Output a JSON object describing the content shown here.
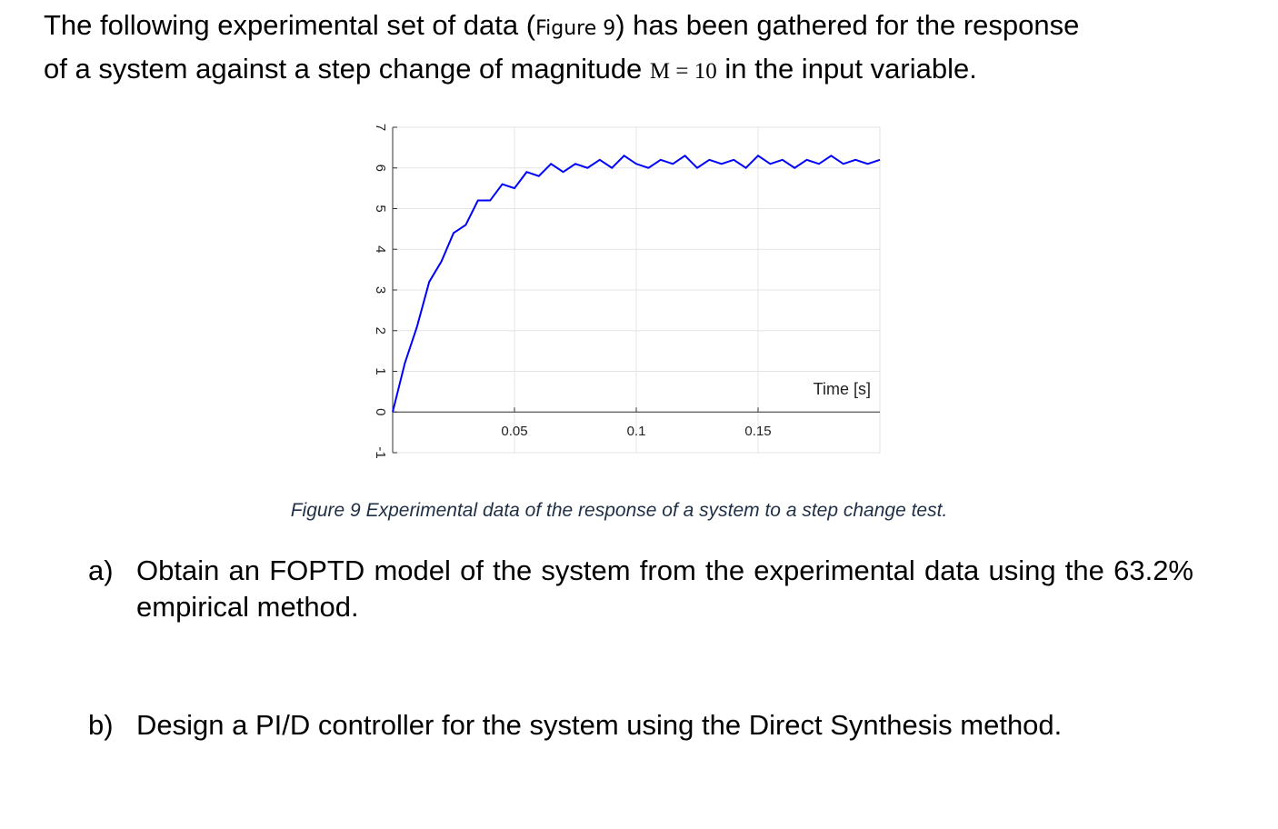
{
  "intro": [
    "The following experimental set of data (",
    "Figure 9",
    ") has been gathered for the response",
    "of a system against a step change of magnitude ",
    "M = 10",
    " in the input variable."
  ],
  "chart_data": {
    "type": "line",
    "xlabel": "Time [s]",
    "x": [
      0,
      0.005,
      0.01,
      0.015,
      0.02,
      0.025,
      0.03,
      0.035,
      0.04,
      0.045,
      0.05,
      0.055,
      0.06,
      0.065,
      0.07,
      0.075,
      0.08,
      0.085,
      0.09,
      0.095,
      0.1,
      0.105,
      0.11,
      0.115,
      0.12,
      0.125,
      0.13,
      0.135,
      0.14,
      0.145,
      0.15,
      0.155,
      0.16,
      0.165,
      0.17,
      0.175,
      0.18,
      0.185,
      0.19,
      0.195,
      0.2
    ],
    "values": [
      0,
      1.2,
      2.1,
      3.2,
      3.7,
      4.4,
      4.6,
      5.2,
      5.2,
      5.6,
      5.5,
      5.9,
      5.8,
      6.1,
      5.9,
      6.1,
      6.0,
      6.2,
      6.0,
      6.3,
      6.1,
      6.0,
      6.2,
      6.1,
      6.3,
      6.0,
      6.2,
      6.1,
      6.2,
      6.0,
      6.3,
      6.1,
      6.2,
      6.0,
      6.2,
      6.1,
      6.3,
      6.1,
      6.2,
      6.1,
      6.2
    ],
    "color": "#0000ff",
    "xlim": [
      0,
      0.2
    ],
    "ylim": [
      -1,
      7
    ],
    "xticks": [
      0.05,
      0.1,
      0.15
    ],
    "yticks": [
      -1,
      0,
      1,
      2,
      3,
      4,
      5,
      6,
      7
    ],
    "grid": true
  },
  "caption": "Figure 9 Experimental data of the response of a system to a step change test.",
  "questions": [
    {
      "label": "a)",
      "text": "Obtain an FOPTD model of the system from the experimental data using the 63.2% empirical method."
    },
    {
      "label": "b)",
      "text": "Design a PI/D controller for the system using the Direct Synthesis method."
    }
  ]
}
